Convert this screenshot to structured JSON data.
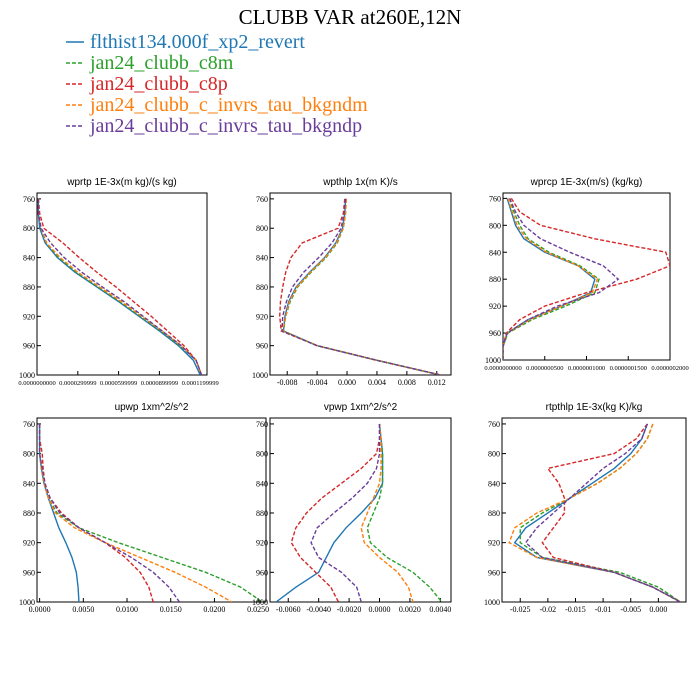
{
  "title": "CLUBB VAR at260E,12N",
  "legend": [
    {
      "name": "flthist134.000f_xp2_revert",
      "color": "#1f77b4",
      "style": "solid"
    },
    {
      "name": "jan24_clubb_c8m",
      "color": "#2ca02c",
      "style": "dashed"
    },
    {
      "name": "jan24_clubb_c8p",
      "color": "#d62728",
      "style": "dashed"
    },
    {
      "name": "jan24_clubb_c_invrs_tau_bkgndm",
      "color": "#ff7f0e",
      "style": "dashed"
    },
    {
      "name": "jan24_clubb_c_invrs_tau_bkgndp",
      "color": "#6a3d9a",
      "style": "dashed"
    }
  ],
  "chart_data": [
    {
      "type": "line",
      "title": "wprtp  1E-3x(m kg)/(s kg)",
      "y": [
        760,
        780,
        800,
        820,
        840,
        860,
        880,
        900,
        920,
        940,
        960,
        980,
        1000
      ],
      "ylim": [
        1000,
        752
      ],
      "yticks": [
        760,
        800,
        840,
        880,
        920,
        960,
        1000
      ],
      "xlim": [
        0,
        0.000125
      ],
      "xticks": [
        {
          "value": 0,
          "label": "0.0000000000"
        },
        {
          "value": 3e-05,
          "label": "0.0000299999"
        },
        {
          "value": 6e-05,
          "label": "0.0000599999"
        },
        {
          "value": 9e-05,
          "label": "0.0000899999"
        },
        {
          "value": 0.00012,
          "label": "0.0001199999"
        }
      ],
      "series": [
        {
          "values": [
            1e-06,
            1e-06,
            2e-06,
            6e-06,
            1.5e-05,
            2.8e-05,
            4.4e-05,
            6e-05,
            7.5e-05,
            9e-05,
            0.000104,
            0.000115,
            0.00012
          ]
        },
        {
          "values": [
            1e-06,
            1e-06,
            3e-06,
            7e-06,
            1.6e-05,
            2.9e-05,
            4.5e-05,
            6.1e-05,
            7.6e-05,
            9.1e-05,
            0.000105,
            0.000117,
            0.000121
          ]
        },
        {
          "values": [
            1e-06,
            2e-06,
            5e-06,
            1.9e-05,
            3.1e-05,
            4.4e-05,
            5.8e-05,
            7.1e-05,
            8.4e-05,
            9.6e-05,
            0.000108,
            0.000117,
            0.000121
          ]
        },
        {
          "values": [
            1e-06,
            1e-06,
            3e-06,
            7e-06,
            1.7e-05,
            3e-05,
            4.6e-05,
            6.2e-05,
            7.7e-05,
            9.2e-05,
            0.000106,
            0.000117,
            0.000121
          ]
        },
        {
          "values": [
            1e-06,
            1e-06,
            3e-06,
            1e-05,
            2e-05,
            3.3e-05,
            4.8e-05,
            6.4e-05,
            7.8e-05,
            9.2e-05,
            0.000106,
            0.000117,
            0.000121
          ]
        }
      ]
    },
    {
      "type": "line",
      "title": "wpthlp  1x(m K)/s",
      "y": [
        760,
        780,
        800,
        820,
        840,
        860,
        880,
        900,
        920,
        940,
        960,
        980,
        1000
      ],
      "ylim": [
        1000,
        752
      ],
      "yticks": [
        760,
        800,
        840,
        880,
        920,
        960,
        1000
      ],
      "xlim": [
        -0.0103,
        0.0139
      ],
      "xticks": [
        -0.008,
        -0.004,
        {
          "value": 0,
          "label": "0.000"
        },
        0.004,
        0.008,
        0.012
      ],
      "series": [
        {
          "values": [
            -0.0002,
            -0.0003,
            -0.0006,
            -0.0015,
            -0.003,
            -0.005,
            -0.0068,
            -0.0078,
            -0.0083,
            -0.0085,
            -0.004,
            0.004,
            0.0125
          ]
        },
        {
          "values": [
            -0.0001,
            -0.0002,
            -0.0005,
            -0.0013,
            -0.0028,
            -0.0048,
            -0.0066,
            -0.0076,
            -0.0082,
            -0.0085,
            -0.004,
            0.004,
            0.0125
          ]
        },
        {
          "values": [
            -0.0003,
            -0.0005,
            -0.0012,
            -0.006,
            -0.0075,
            -0.0082,
            -0.0086,
            -0.0089,
            -0.009,
            -0.0088,
            -0.004,
            0.004,
            0.0125
          ]
        },
        {
          "values": [
            -0.0001,
            -0.0002,
            -0.0005,
            -0.0014,
            -0.0029,
            -0.0049,
            -0.0067,
            -0.0077,
            -0.0082,
            -0.0086,
            -0.004,
            0.004,
            0.0125
          ]
        },
        {
          "values": [
            -0.0002,
            -0.0004,
            -0.0008,
            -0.002,
            -0.0038,
            -0.0058,
            -0.0073,
            -0.0081,
            -0.0086,
            -0.0087,
            -0.004,
            0.004,
            0.0125
          ]
        }
      ]
    },
    {
      "type": "line",
      "title": "wprcp  1E-3x(m/s) (kg/kg)",
      "y": [
        760,
        780,
        800,
        820,
        840,
        860,
        880,
        900,
        920,
        940,
        960,
        980,
        1000
      ],
      "ylim": [
        1000,
        752
      ],
      "yticks": [
        760,
        800,
        840,
        880,
        920,
        960,
        1000
      ],
      "xlim": [
        0,
        2e-07
      ],
      "xticks": [
        {
          "value": 0,
          "label": "0.0000000000"
        },
        {
          "value": 5e-08,
          "label": "0.0000000500"
        },
        {
          "value": 1e-07,
          "label": "0.0000001000"
        },
        {
          "value": 1.5e-07,
          "label": "0.0000001500"
        },
        {
          "value": 2e-07,
          "label": "0.0000002000"
        }
      ],
      "series": [
        {
          "values": [
            5e-09,
            1e-08,
            1.5e-08,
            2.5e-08,
            5e-08,
            9e-08,
            1.1e-07,
            1.05e-07,
            7e-08,
            3e-08,
            5e-09,
            0,
            0
          ]
        },
        {
          "values": [
            8e-09,
            1.3e-08,
            2e-08,
            3e-08,
            5.5e-08,
            9.2e-08,
            1.15e-07,
            1.1e-07,
            7.5e-08,
            3.5e-08,
            6e-09,
            0,
            0
          ]
        },
        {
          "values": [
            1e-08,
            2e-08,
            4.5e-08,
            1.1e-07,
            1.95e-07,
            2e-07,
            1.6e-07,
            1e-07,
            5e-08,
            2e-08,
            4e-09,
            0,
            0
          ]
        },
        {
          "values": [
            6e-09,
            1.1e-08,
            1.7e-08,
            2.8e-08,
            5.2e-08,
            9e-08,
            1.13e-07,
            1.07e-07,
            7e-08,
            3.2e-08,
            5e-09,
            0,
            0
          ]
        },
        {
          "values": [
            8e-09,
            1.5e-08,
            2.5e-08,
            4.5e-08,
            8e-08,
            1.2e-07,
            1.38e-07,
            1.15e-07,
            6.5e-08,
            3e-08,
            5e-09,
            0,
            0
          ]
        }
      ]
    },
    {
      "type": "line",
      "title": "upwp  1xm^2/s^2",
      "y": [
        760,
        780,
        800,
        820,
        840,
        860,
        880,
        900,
        920,
        940,
        960,
        980,
        1000
      ],
      "ylim": [
        1000,
        752
      ],
      "yticks": [
        760,
        800,
        840,
        880,
        920,
        960,
        1000
      ],
      "xlim": [
        -0.0003,
        0.0259
      ],
      "xticks": [
        {
          "value": 0,
          "label": "0.0000"
        },
        {
          "value": 0.005,
          "label": "0.0050"
        },
        {
          "value": 0.01,
          "label": "0.0100"
        },
        {
          "value": 0.015,
          "label": "0.0150"
        },
        {
          "value": 0.02,
          "label": "0.0200"
        },
        {
          "value": 0.025,
          "label": "0.0250"
        }
      ],
      "series": [
        {
          "values": [
            0,
            0,
            0,
            0.0002,
            0.0005,
            0.001,
            0.0016,
            0.0022,
            0.003,
            0.0037,
            0.0042,
            0.0044,
            0.0045
          ]
        },
        {
          "values": [
            0,
            0,
            0,
            0.0002,
            0.0005,
            0.001,
            0.002,
            0.0045,
            0.009,
            0.014,
            0.019,
            0.023,
            0.0255
          ]
        },
        {
          "values": [
            0,
            0,
            0.0003,
            0.0004,
            0.0006,
            0.0012,
            0.0025,
            0.0045,
            0.0075,
            0.0098,
            0.0115,
            0.0125,
            0.013
          ]
        },
        {
          "values": [
            0,
            0,
            0,
            0.0002,
            0.0005,
            0.001,
            0.0018,
            0.004,
            0.0075,
            0.0115,
            0.0155,
            0.019,
            0.022
          ]
        },
        {
          "values": [
            0,
            0,
            0,
            0.0003,
            0.0006,
            0.0012,
            0.0023,
            0.0045,
            0.0075,
            0.0105,
            0.013,
            0.0148,
            0.016
          ]
        }
      ]
    },
    {
      "type": "line",
      "title": "vpwp  1xm^2/s^2",
      "y": [
        760,
        780,
        800,
        820,
        840,
        860,
        880,
        900,
        920,
        940,
        960,
        980,
        1000
      ],
      "ylim": [
        1000,
        752
      ],
      "yticks": [
        760,
        800,
        840,
        880,
        920,
        960,
        1000
      ],
      "xlim": [
        -0.0072,
        0.0047
      ],
      "xticks": [
        {
          "value": -0.006,
          "label": "-0.0060"
        },
        {
          "value": -0.004,
          "label": "-0.0040"
        },
        {
          "value": -0.002,
          "label": "-0.0020"
        },
        {
          "value": 0,
          "label": "0.0000"
        },
        {
          "value": 0.002,
          "label": "0.0020"
        },
        {
          "value": 0.004,
          "label": "0.0040"
        }
      ],
      "series": [
        {
          "values": [
            0,
            0.0001,
            0.0002,
            0.0002,
            0.0002,
            -0.0003,
            -0.0012,
            -0.0022,
            -0.003,
            -0.0035,
            -0.004,
            -0.0055,
            -0.0068
          ]
        },
        {
          "values": [
            0,
            0.0001,
            0.0002,
            0.0002,
            0.0002,
            0,
            -0.0004,
            -0.0008,
            -0.0006,
            0.0005,
            0.0022,
            0.0033,
            0.0041
          ]
        },
        {
          "values": [
            0,
            0,
            -0.0002,
            -0.0012,
            -0.0025,
            -0.0038,
            -0.0048,
            -0.0055,
            -0.0058,
            -0.0052,
            -0.0042,
            -0.0032,
            -0.0027
          ]
        },
        {
          "values": [
            0,
            0.0001,
            0.0001,
            0.0001,
            0,
            -0.0004,
            -0.0008,
            -0.0012,
            -0.001,
            0,
            0.0012,
            0.0019,
            0.0022
          ]
        },
        {
          "values": [
            0,
            0,
            0,
            -0.0002,
            -0.0008,
            -0.0018,
            -0.003,
            -0.0041,
            -0.0045,
            -0.004,
            -0.0025,
            -0.0015,
            -0.0012
          ]
        }
      ]
    },
    {
      "type": "line",
      "title": "rtpthlp  1E-3x(kg K)/kg",
      "y": [
        760,
        780,
        800,
        820,
        840,
        860,
        880,
        900,
        920,
        940,
        960,
        980,
        1000
      ],
      "ylim": [
        1000,
        752
      ],
      "yticks": [
        760,
        800,
        840,
        880,
        920,
        960,
        1000
      ],
      "xlim": [
        -0.0283,
        0.005
      ],
      "xticks": [
        -0.025,
        -0.02,
        -0.015,
        -0.01,
        -0.005,
        {
          "value": 0,
          "label": "0.000"
        }
      ],
      "series": [
        {
          "values": [
            -0.002,
            -0.003,
            -0.005,
            -0.008,
            -0.012,
            -0.016,
            -0.02,
            -0.024,
            -0.026,
            -0.022,
            -0.008,
            -0.001,
            0.004
          ]
        },
        {
          "values": [
            -0.001,
            -0.002,
            -0.004,
            -0.007,
            -0.011,
            -0.016,
            -0.021,
            -0.025,
            -0.025,
            -0.021,
            -0.007,
            0,
            0.004
          ]
        },
        {
          "values": [
            -0.002,
            -0.004,
            -0.008,
            -0.02,
            -0.018,
            -0.017,
            -0.017,
            -0.019,
            -0.021,
            -0.019,
            -0.008,
            -0.001,
            0.004
          ]
        },
        {
          "values": [
            -0.001,
            -0.002,
            -0.004,
            -0.007,
            -0.011,
            -0.016,
            -0.022,
            -0.026,
            -0.027,
            -0.022,
            -0.008,
            -0.001,
            0.004
          ]
        },
        {
          "values": [
            -0.002,
            -0.003,
            -0.006,
            -0.01,
            -0.013,
            -0.016,
            -0.019,
            -0.022,
            -0.024,
            -0.021,
            -0.008,
            -0.001,
            0.004
          ]
        }
      ]
    }
  ]
}
